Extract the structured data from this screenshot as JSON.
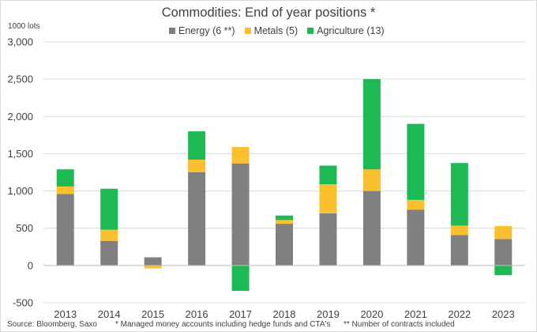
{
  "chart_data": {
    "type": "bar",
    "stacked": true,
    "title": "Commodities: End of year positions *",
    "ylabel": "1000 lots",
    "xlabel": "",
    "ylim": [
      -500,
      3000
    ],
    "yticks": [
      -500,
      0,
      500,
      1000,
      1500,
      2000,
      2500,
      3000
    ],
    "ytick_labels": [
      "-500",
      "0",
      "500",
      "1,000",
      "1,500",
      "2,000",
      "2,500",
      "3,000"
    ],
    "grid": true,
    "legend_position": "top-center",
    "categories": [
      "2013",
      "2014",
      "2015",
      "2016",
      "2017",
      "2018",
      "2019",
      "2020",
      "2021",
      "2022",
      "2023"
    ],
    "series": [
      {
        "name": "Energy (6 **)",
        "color": "#808080",
        "values": [
          960,
          330,
          110,
          1250,
          1370,
          560,
          700,
          1000,
          750,
          410,
          355
        ]
      },
      {
        "name": "Metals (5)",
        "color": "#fbc02d",
        "values": [
          100,
          150,
          -40,
          170,
          220,
          50,
          390,
          290,
          130,
          125,
          175
        ]
      },
      {
        "name": "Agriculture (13)",
        "color": "#1db954",
        "values": [
          230,
          550,
          0,
          380,
          0,
          60,
          250,
          1210,
          1020,
          840,
          0
        ]
      },
      {
        "name": "Agriculture (13) negative",
        "color": "#1db954",
        "values": [
          0,
          0,
          0,
          0,
          -340,
          0,
          0,
          0,
          0,
          0,
          -130
        ],
        "hidden_in_legend": true
      }
    ]
  },
  "footer": {
    "source": "Source: Bloomberg, Saxo",
    "note1": "* Managed money accounts including hedge funds and CTA's",
    "note2": "** Number of contracts included"
  }
}
